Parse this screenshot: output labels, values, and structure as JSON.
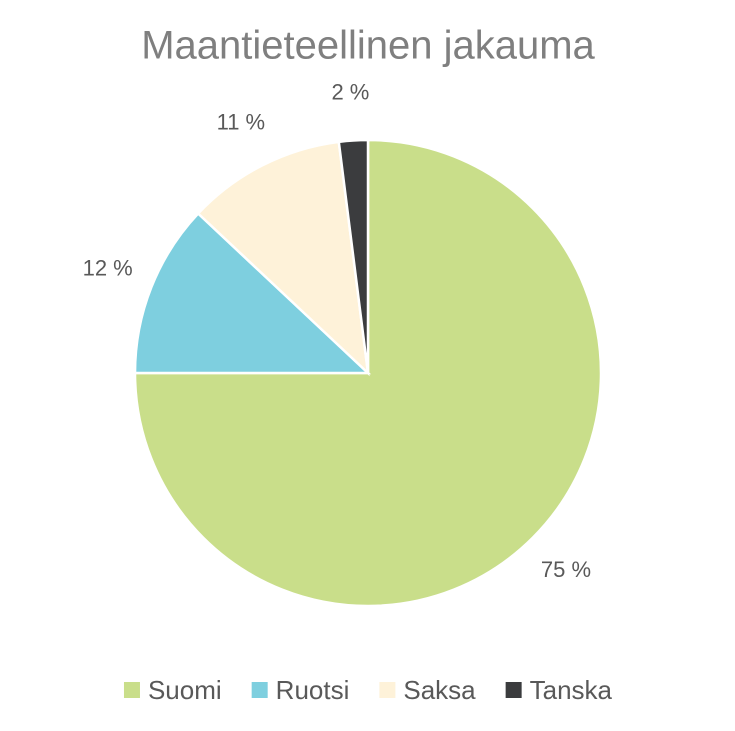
{
  "chart_data": {
    "type": "pie",
    "title": "Maantieteellinen jakauma",
    "categories": [
      "Suomi",
      "Ruotsi",
      "Saksa",
      "Tanska"
    ],
    "values": [
      75,
      12,
      11,
      2
    ],
    "value_labels": [
      "75 %",
      "12 %",
      "11 %",
      "2 %"
    ],
    "colors": [
      "#c9de8a",
      "#7ecfdf",
      "#fef2d9",
      "#3b3c3e"
    ],
    "legend": "bottom"
  }
}
